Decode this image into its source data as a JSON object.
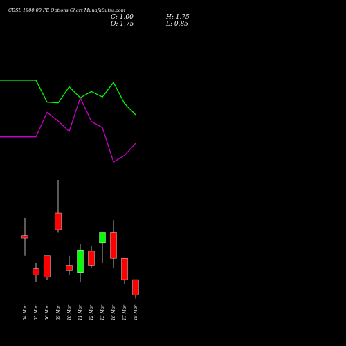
{
  "header": {
    "title": "CDSL 1900.00 PE Options  Chart MunafaSutra.com",
    "close_label": "C: 1.00",
    "open_label": "O: 1.75",
    "high_label": "H: 1.75",
    "low_label": "L: 0.85"
  },
  "colors": {
    "background": "#000000",
    "bull": "#00ff00",
    "bear": "#ff0000",
    "wick": "#ffffff",
    "line_green": "#00ff00",
    "line_magenta": "#cc00cc",
    "text": "#ffffff"
  },
  "chart_data": [
    {
      "type": "candlestick",
      "categories": [
        "04 Mar",
        "05 Mar",
        "06 Mar",
        "09 Mar",
        "10 Mar",
        "11 Mar",
        "12 Mar",
        "13 Mar",
        "16 Mar",
        "17 Mar",
        "18 Mar"
      ],
      "ohlc": [
        {
          "open": 4.45,
          "high": 5.2,
          "low": 3.6,
          "close": 4.35
        },
        {
          "open": 3.05,
          "high": 3.3,
          "low": 2.5,
          "close": 2.8
        },
        {
          "open": 3.6,
          "high": 3.6,
          "low": 2.6,
          "close": 2.7
        },
        {
          "open": 5.4,
          "high": 6.8,
          "low": 4.6,
          "close": 4.7
        },
        {
          "open": 3.2,
          "high": 3.6,
          "low": 2.8,
          "close": 3.0
        },
        {
          "open": 2.9,
          "high": 4.1,
          "low": 2.5,
          "close": 3.85
        },
        {
          "open": 3.8,
          "high": 4.0,
          "low": 3.1,
          "close": 3.2
        },
        {
          "open": 4.15,
          "high": 4.6,
          "low": 3.3,
          "close": 4.6
        },
        {
          "open": 4.6,
          "high": 5.1,
          "low": 3.1,
          "close": 3.5
        },
        {
          "open": 3.5,
          "high": 3.5,
          "low": 2.4,
          "close": 2.6
        },
        {
          "open": 2.6,
          "high": 2.6,
          "low": 1.8,
          "close": 1.95
        }
      ]
    },
    {
      "type": "line",
      "x": [
        "04 Mar",
        "05 Mar",
        "06 Mar",
        "09 Mar",
        "10 Mar",
        "11 Mar",
        "12 Mar",
        "13 Mar",
        "16 Mar",
        "17 Mar",
        "18 Mar"
      ],
      "series": [
        {
          "values": [
            0.0,
            0.0,
            0.6,
            0.62,
            0.18,
            0.48,
            0.31,
            0.46,
            0.06,
            0.64,
            0.95
          ]
        },
        {
          "values": [
            1.55,
            1.55,
            0.88,
            1.12,
            1.4,
            0.48,
            1.13,
            1.3,
            2.24,
            2.06,
            1.73
          ]
        }
      ]
    }
  ]
}
